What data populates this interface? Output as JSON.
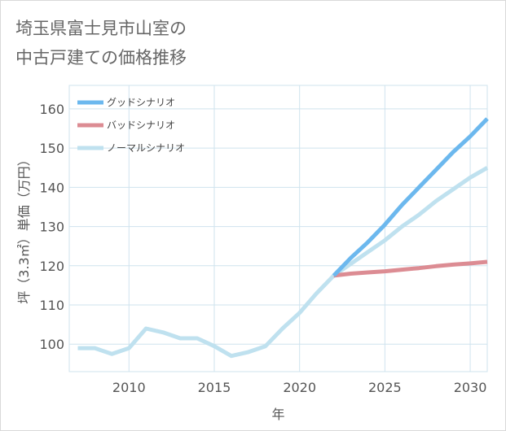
{
  "title_lines": [
    "埼玉県富士見市山室の",
    "中古戸建ての価格推移"
  ],
  "chart_data": {
    "type": "line",
    "xlabel": "年",
    "ylabel": "坪（3.3㎡）単価（万円）",
    "xlim": [
      2006.5,
      2031
    ],
    "ylim": [
      93,
      166
    ],
    "xticks": [
      2010,
      2015,
      2020,
      2025,
      2030
    ],
    "yticks": [
      100,
      110,
      120,
      130,
      140,
      150,
      160
    ],
    "grid": true,
    "legend_position": "top-left",
    "series": [
      {
        "name": "グッドシナリオ",
        "color": "#6cb8ee",
        "x": [
          2022,
          2023,
          2024,
          2025,
          2026,
          2027,
          2028,
          2029,
          2030,
          2031
        ],
        "values": [
          117.5,
          122,
          126,
          130.5,
          135.5,
          140,
          144.5,
          149,
          153,
          157.5
        ]
      },
      {
        "name": "バッドシナリオ",
        "color": "#dc8c93",
        "x": [
          2022,
          2023,
          2024,
          2025,
          2026,
          2027,
          2028,
          2029,
          2030,
          2031
        ],
        "values": [
          117.5,
          118,
          118.3,
          118.6,
          119,
          119.4,
          119.9,
          120.3,
          120.6,
          121
        ]
      },
      {
        "name": "ノーマルシナリオ",
        "color": "#bfe1ef",
        "x": [
          2007,
          2008,
          2009,
          2010,
          2011,
          2012,
          2013,
          2014,
          2015,
          2016,
          2017,
          2018,
          2019,
          2020,
          2021,
          2022,
          2023,
          2024,
          2025,
          2026,
          2027,
          2028,
          2029,
          2030,
          2031
        ],
        "values": [
          99,
          99,
          97.5,
          99,
          104,
          103,
          101.5,
          101.5,
          99.5,
          97,
          98,
          99.5,
          104,
          108,
          113,
          117.5,
          120.5,
          123.5,
          126.5,
          130,
          133,
          136.5,
          139.5,
          142.5,
          145
        ]
      }
    ]
  }
}
